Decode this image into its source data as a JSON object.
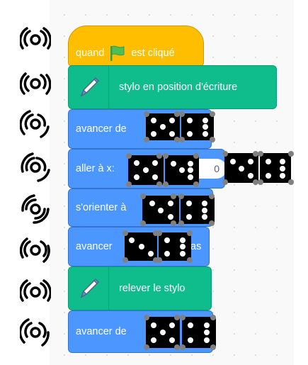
{
  "blocks": {
    "when_flag": {
      "before": "quand",
      "after": "est cliqué"
    },
    "pen_down": "stylo en position d'écriture",
    "move1": "avancer de",
    "goto": {
      "label": "aller à x:",
      "x_value_fragment": "0"
    },
    "point": "s'orienter à",
    "move2": {
      "label_start": "avancer",
      "label_end": "as"
    },
    "pen_up": "relever le stylo",
    "move3": "avancer de"
  },
  "icons": {
    "left_markers": "eye-marker-icon",
    "green_flag": "green-flag-icon",
    "pen": "pen-icon",
    "dice": "dice-icon"
  },
  "colors": {
    "events": "#FFBF00",
    "pen": "#0FBD8C",
    "motion": "#4C97FF"
  }
}
